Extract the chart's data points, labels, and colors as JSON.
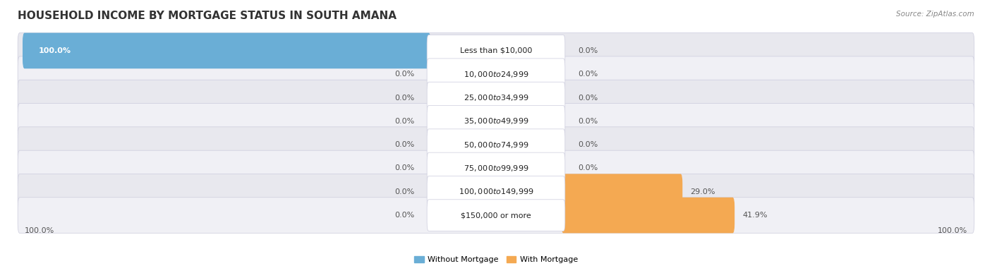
{
  "title": "HOUSEHOLD INCOME BY MORTGAGE STATUS IN SOUTH AMANA",
  "source": "Source: ZipAtlas.com",
  "categories": [
    "Less than $10,000",
    "$10,000 to $24,999",
    "$25,000 to $34,999",
    "$35,000 to $49,999",
    "$50,000 to $74,999",
    "$75,000 to $99,999",
    "$100,000 to $149,999",
    "$150,000 or more"
  ],
  "without_mortgage": [
    100.0,
    0.0,
    0.0,
    0.0,
    0.0,
    0.0,
    0.0,
    0.0
  ],
  "with_mortgage": [
    0.0,
    0.0,
    0.0,
    0.0,
    0.0,
    0.0,
    29.0,
    41.9
  ],
  "without_mortgage_color": "#6aaed6",
  "with_mortgage_color": "#f4a952",
  "bar_bg_color_odd": "#e8e8ee",
  "bar_bg_color_even": "#f0f0f5",
  "bg_color": "#ffffff",
  "legend_labels": [
    "Without Mortgage",
    "With Mortgage"
  ],
  "bottom_left_label": "100.0%",
  "bottom_right_label": "100.0%",
  "max_value": 100.0,
  "title_fontsize": 11,
  "label_fontsize": 8,
  "category_fontsize": 8,
  "source_fontsize": 7.5
}
